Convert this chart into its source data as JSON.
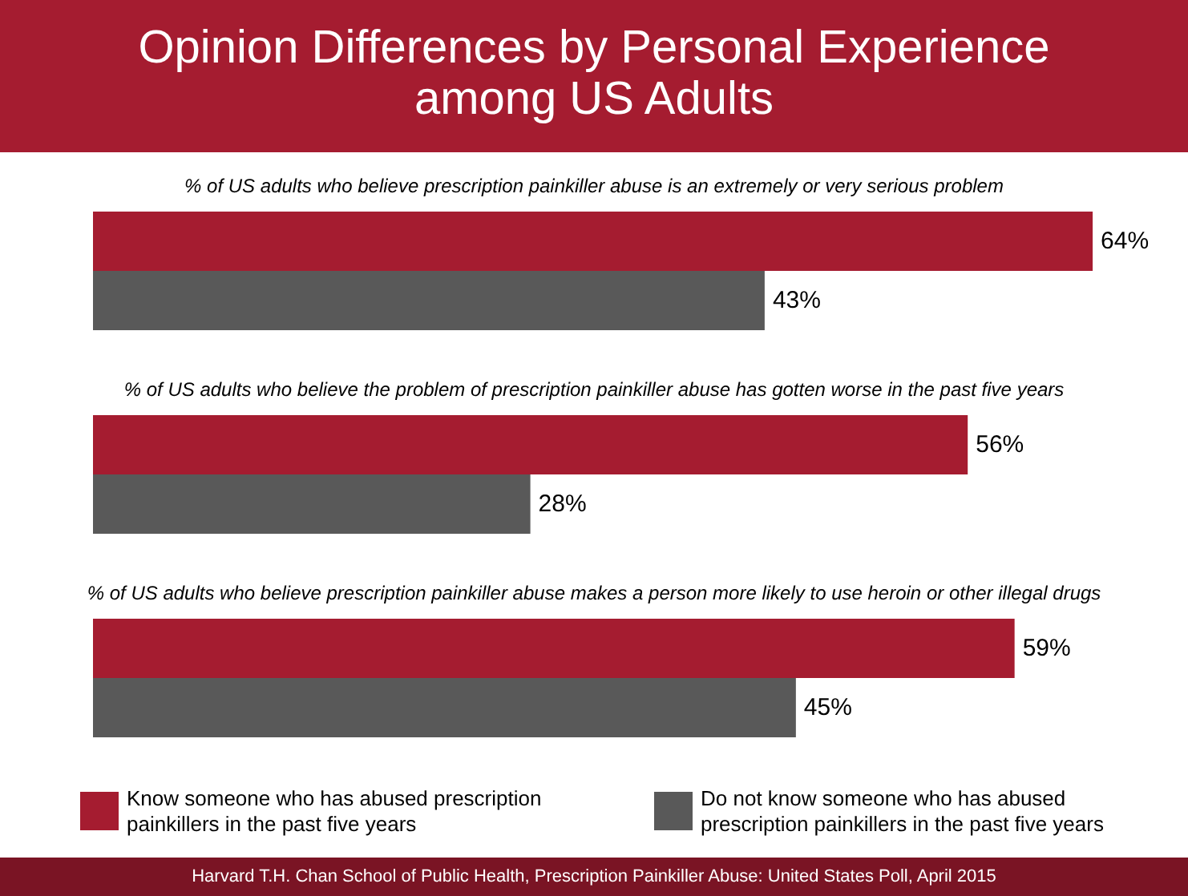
{
  "chart_data": {
    "type": "bar",
    "orientation": "horizontal",
    "title": "Opinion Differences by Personal Experience among US Adults",
    "categories": [
      "% of US adults who believe prescription painkiller abuse is an extremely or very serious problem",
      "% of US adults who believe the problem of prescription painkiller abuse has gotten worse in the past five years",
      "% of US adults who believe prescription painkiller abuse makes a person more likely to use heroin or other illegal drugs"
    ],
    "series": [
      {
        "name": "Know someone who has abused prescription painkillers in the past five years",
        "color": "#a51c30",
        "values": [
          64,
          56,
          59
        ],
        "value_labels": [
          "64%",
          "56%",
          "59%"
        ]
      },
      {
        "name": "Do not know someone who has abused prescription painkillers in the past five years",
        "color": "#595959",
        "values": [
          43,
          28,
          45
        ],
        "value_labels": [
          "43%",
          "28%",
          "45%"
        ]
      }
    ],
    "legend": "bottom",
    "annotations": [
      "Harvard T.H. Chan School of Public Health, Prescription Painkiller Abuse: United States Poll, April 2015"
    ]
  }
}
